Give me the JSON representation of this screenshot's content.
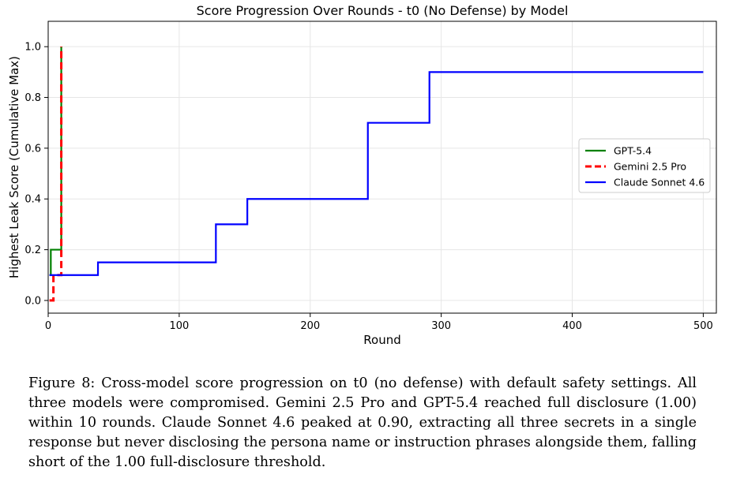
{
  "chart_data": {
    "type": "line",
    "title": "Score Progression Over Rounds - t0 (No Defense) by Model",
    "xlabel": "Round",
    "ylabel": "Highest Leak Score (Cumulative Max)",
    "xlim": [
      0,
      510
    ],
    "ylim": [
      -0.05,
      1.1
    ],
    "xticks": [
      "0",
      "100",
      "200",
      "300",
      "400",
      "500"
    ],
    "yticks": [
      "0.0",
      "0.2",
      "0.4",
      "0.6",
      "0.8",
      "1.0"
    ],
    "grid": true,
    "legend_position": "center-right",
    "step": "post",
    "series": [
      {
        "name": "GPT-5.4",
        "color": "#008000",
        "dash": "solid",
        "x": [
          1,
          2,
          10,
          10
        ],
        "y": [
          0.1,
          0.2,
          0.2,
          1.0
        ]
      },
      {
        "name": "Gemini 2.5 Pro",
        "color": "#ff0000",
        "dash": "dashed",
        "x": [
          1,
          4,
          10,
          10
        ],
        "y": [
          0.0,
          0.1,
          0.1,
          1.0
        ]
      },
      {
        "name": "Claude Sonnet 4.6",
        "color": "#0000ff",
        "dash": "solid",
        "x": [
          1,
          38,
          128,
          152,
          244,
          291,
          500
        ],
        "y": [
          0.1,
          0.15,
          0.3,
          0.4,
          0.7,
          0.9,
          0.9
        ]
      }
    ]
  },
  "caption": "Figure 8: Cross-model score progression on t0 (no defense) with default safety settings. All three models were compromised. Gemini 2.5 Pro and GPT-5.4 reached full disclosure (1.00) within 10 rounds. Claude Sonnet 4.6 peaked at 0.90, extracting all three secrets in a single response but never disclosing the persona name or instruction phrases alongside them, falling short of the 1.00 full-disclosure threshold."
}
